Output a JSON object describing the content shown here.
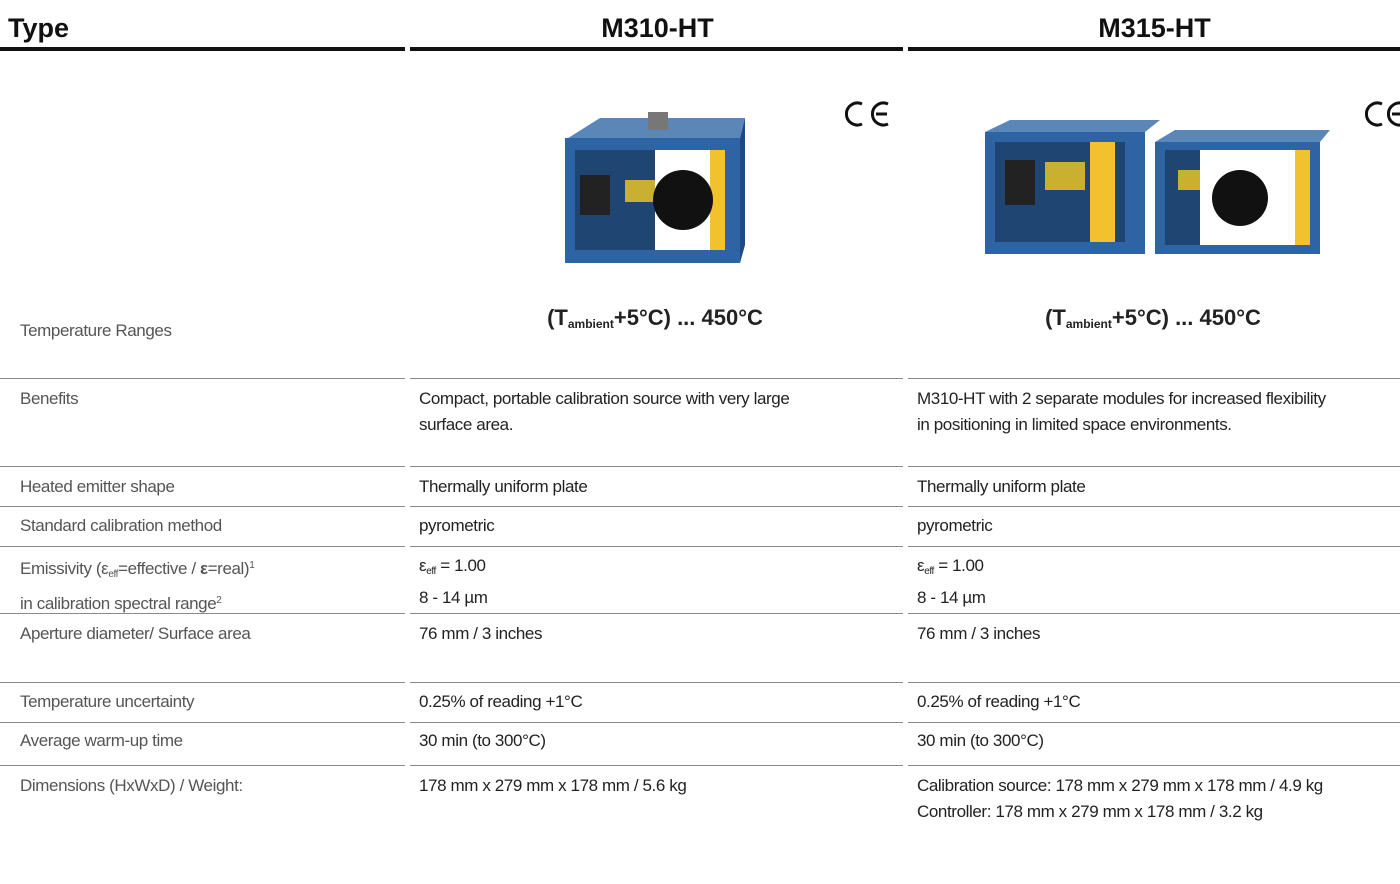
{
  "header": {
    "type": "Type",
    "models": [
      "M310-HT",
      "M315-HT"
    ]
  },
  "temperature_range": {
    "label": "Temperature Ranges",
    "values": [
      [
        "(T",
        {
          "sub": "ambient"
        },
        "+5°C) ... 450°C"
      ],
      [
        "(T",
        {
          "sub": "ambient"
        },
        "+5°C) ... 450°C"
      ]
    ]
  },
  "rows": [
    {
      "label": [
        [
          "Benefits"
        ]
      ],
      "values": [
        [
          [
            "Compact, portable calibration source with very large"
          ],
          [
            "surface area."
          ]
        ],
        [
          [
            "M310-HT with 2 separate modules for increased flexibility"
          ],
          [
            "in positioning in limited space environments."
          ]
        ]
      ]
    },
    {
      "label": [
        [
          "Heated emitter shape"
        ]
      ],
      "values": [
        [
          [
            "Thermally uniform plate"
          ]
        ],
        [
          [
            "Thermally uniform plate"
          ]
        ]
      ]
    },
    {
      "label": [
        [
          "Standard calibration method"
        ]
      ],
      "values": [
        [
          [
            "pyrometric"
          ]
        ],
        [
          [
            "pyrometric"
          ]
        ]
      ]
    },
    {
      "label": [
        [
          "Emissivity  (ε",
          {
            "sub": "eff"
          },
          "=effective / ",
          {
            "bold": "ε"
          },
          "=real)",
          {
            "sup": "1"
          }
        ],
        [
          "in calibration spectral range",
          {
            "sup": "2"
          }
        ]
      ],
      "values": [
        [
          [
            "ε",
            {
              "sub": "eff"
            },
            " = 1.00"
          ],
          [
            "8 - 14 µm"
          ]
        ],
        [
          [
            "ε",
            {
              "sub": "eff"
            },
            " = 1.00"
          ],
          [
            "8 - 14 µm"
          ]
        ]
      ]
    },
    {
      "label": [
        [
          "Aperture diameter/ Surface area"
        ]
      ],
      "values": [
        [
          [
            "76 mm / 3 inches"
          ]
        ],
        [
          [
            "76 mm / 3 inches"
          ]
        ]
      ]
    },
    {
      "label": [
        [
          "Temperature uncertainty"
        ]
      ],
      "values": [
        [
          [
            "0.25% of reading +1°C"
          ]
        ],
        [
          [
            "0.25% of reading +1°C"
          ]
        ]
      ]
    },
    {
      "label": [
        [
          "Average warm-up time"
        ]
      ],
      "values": [
        [
          [
            "30 min (to 300°C)"
          ]
        ],
        [
          [
            "30 min (to 300°C)"
          ]
        ]
      ]
    },
    {
      "label": [
        [
          "Dimensions (HxWxD) / Weight:"
        ]
      ],
      "values": [
        [
          [
            "178 mm x 279 mm x 178 mm  /  5.6 kg"
          ]
        ],
        [
          [
            "Calibration source: 178 mm x 279 mm x 178 mm  /  4.9 kg"
          ],
          [
            "Controller: 178 mm x 279 mm x 178 mm  /  3.2 kg"
          ]
        ]
      ]
    }
  ]
}
